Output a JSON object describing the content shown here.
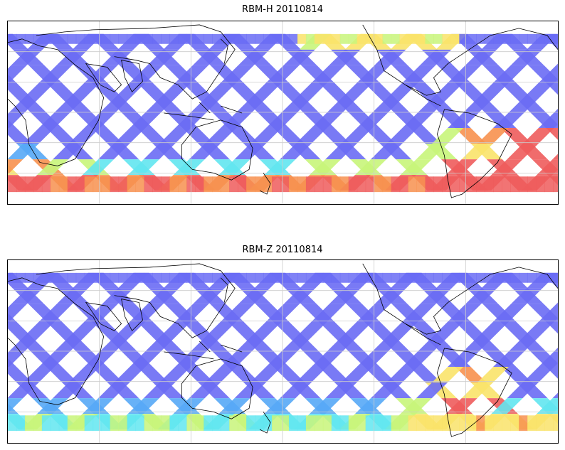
{
  "panels": [
    {
      "title": "RBM-H 20110814",
      "variable": "RBM-H"
    },
    {
      "title": "RBM-Z 20110814",
      "variable": "RBM-Z"
    }
  ],
  "colors": {
    "low": "#6a6cf4",
    "low_mid": "#56a8f6",
    "mid": "#62e6f0",
    "mid_high": "#c8f57a",
    "high": "#f9e36a",
    "very_high": "#f7914f",
    "max": "#ee5c5c",
    "grid": "#cccccc",
    "coast": "#000000"
  },
  "map": {
    "projection": "equirectangular",
    "gridlines": true,
    "colormap": "jet"
  }
}
